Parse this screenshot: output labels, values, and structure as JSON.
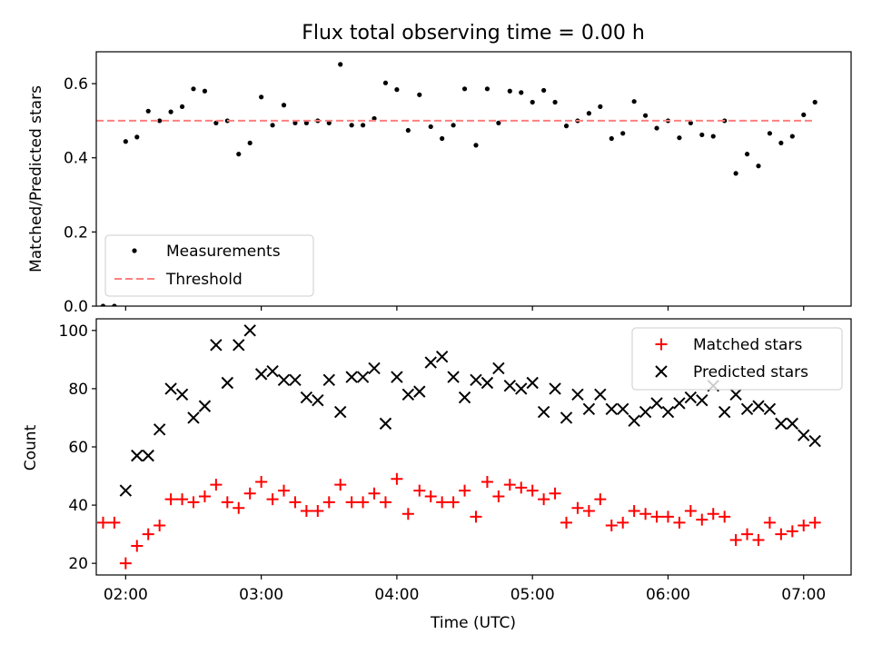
{
  "chart_data": [
    {
      "type": "scatter",
      "title": "Flux total observing time = 0.00 h",
      "xlabel": "",
      "ylabel": "Matched/Predicted stars",
      "xlim": [
        "01:47",
        "07:21"
      ],
      "ylim": [
        0,
        0.686
      ],
      "yticks": [
        0.0,
        0.2,
        0.4,
        0.6
      ],
      "ytick_labels": [
        "0.0",
        "0.2",
        "0.4",
        "0.6"
      ],
      "legend": {
        "position": "lower-left",
        "entries": [
          "Measurements",
          "Threshold"
        ]
      },
      "series": [
        {
          "name": "Measurements",
          "marker": "dot",
          "color": "#000000",
          "points": [
            [
              "01:50",
              0.0
            ],
            [
              "01:55",
              0.0
            ],
            [
              "02:00",
              0.444
            ],
            [
              "02:05",
              0.456
            ],
            [
              "02:10",
              0.526
            ],
            [
              "02:15",
              0.5
            ],
            [
              "02:20",
              0.524
            ],
            [
              "02:25",
              0.538
            ],
            [
              "02:30",
              0.586
            ],
            [
              "02:35",
              0.58
            ],
            [
              "02:40",
              0.494
            ],
            [
              "02:45",
              0.5
            ],
            [
              "02:50",
              0.41
            ],
            [
              "02:55",
              0.44
            ],
            [
              "03:00",
              0.564
            ],
            [
              "03:05",
              0.488
            ],
            [
              "03:10",
              0.542
            ],
            [
              "03:15",
              0.494
            ],
            [
              "03:20",
              0.494
            ],
            [
              "03:25",
              0.5
            ],
            [
              "03:30",
              0.494
            ],
            [
              "03:35",
              0.652
            ],
            [
              "03:40",
              0.488
            ],
            [
              "03:45",
              0.488
            ],
            [
              "03:50",
              0.506
            ],
            [
              "03:55",
              0.602
            ],
            [
              "04:00",
              0.584
            ],
            [
              "04:05",
              0.474
            ],
            [
              "04:10",
              0.57
            ],
            [
              "04:15",
              0.484
            ],
            [
              "04:20",
              0.452
            ],
            [
              "04:25",
              0.488
            ],
            [
              "04:30",
              0.586
            ],
            [
              "04:35",
              0.434
            ],
            [
              "04:40",
              0.586
            ],
            [
              "04:45",
              0.494
            ],
            [
              "04:50",
              0.58
            ],
            [
              "04:55",
              0.576
            ],
            [
              "05:00",
              0.55
            ],
            [
              "05:05",
              0.582
            ],
            [
              "05:10",
              0.55
            ],
            [
              "05:15",
              0.486
            ],
            [
              "05:20",
              0.5
            ],
            [
              "05:25",
              0.52
            ],
            [
              "05:30",
              0.538
            ],
            [
              "05:35",
              0.452
            ],
            [
              "05:40",
              0.466
            ],
            [
              "05:45",
              0.552
            ],
            [
              "05:50",
              0.514
            ],
            [
              "05:55",
              0.48
            ],
            [
              "06:00",
              0.5
            ],
            [
              "06:05",
              0.454
            ],
            [
              "06:10",
              0.494
            ],
            [
              "06:15",
              0.462
            ],
            [
              "06:20",
              0.458
            ],
            [
              "06:25",
              0.5
            ],
            [
              "06:30",
              0.358
            ],
            [
              "06:35",
              0.41
            ],
            [
              "06:40",
              0.378
            ],
            [
              "06:45",
              0.466
            ],
            [
              "06:50",
              0.44
            ],
            [
              "06:55",
              0.458
            ],
            [
              "07:00",
              0.516
            ],
            [
              "07:05",
              0.55
            ]
          ]
        },
        {
          "name": "Threshold",
          "style": "dashed",
          "color": "#ff7f7f",
          "y": 0.5,
          "x_range": [
            "01:47",
            "07:05"
          ]
        }
      ]
    },
    {
      "type": "scatter",
      "title": "",
      "xlabel": "Time (UTC)",
      "ylabel": "Count",
      "xlim": [
        "01:47",
        "07:21"
      ],
      "ylim": [
        16,
        104
      ],
      "yticks": [
        20,
        40,
        60,
        80,
        100
      ],
      "ytick_labels": [
        "20",
        "40",
        "60",
        "80",
        "100"
      ],
      "xticks": [
        "02:00",
        "03:00",
        "04:00",
        "05:00",
        "06:00",
        "07:00"
      ],
      "xtick_labels": [
        "02:00",
        "03:00",
        "04:00",
        "05:00",
        "06:00",
        "07:00"
      ],
      "legend": {
        "position": "top-right",
        "entries": [
          "Matched stars",
          "Predicted stars"
        ]
      },
      "series": [
        {
          "name": "Matched stars",
          "marker": "plus",
          "color": "#ff0000",
          "points": [
            [
              "01:50",
              34
            ],
            [
              "01:55",
              34
            ],
            [
              "02:00",
              20
            ],
            [
              "02:05",
              26
            ],
            [
              "02:10",
              30
            ],
            [
              "02:15",
              33
            ],
            [
              "02:20",
              42
            ],
            [
              "02:25",
              42
            ],
            [
              "02:30",
              41
            ],
            [
              "02:35",
              43
            ],
            [
              "02:40",
              47
            ],
            [
              "02:45",
              41
            ],
            [
              "02:50",
              39
            ],
            [
              "02:55",
              44
            ],
            [
              "03:00",
              48
            ],
            [
              "03:05",
              42
            ],
            [
              "03:10",
              45
            ],
            [
              "03:15",
              41
            ],
            [
              "03:20",
              38
            ],
            [
              "03:25",
              38
            ],
            [
              "03:30",
              41
            ],
            [
              "03:35",
              47
            ],
            [
              "03:40",
              41
            ],
            [
              "03:45",
              41
            ],
            [
              "03:50",
              44
            ],
            [
              "03:55",
              41
            ],
            [
              "04:00",
              49
            ],
            [
              "04:05",
              37
            ],
            [
              "04:10",
              45
            ],
            [
              "04:15",
              43
            ],
            [
              "04:20",
              41
            ],
            [
              "04:25",
              41
            ],
            [
              "04:30",
              45
            ],
            [
              "04:35",
              36
            ],
            [
              "04:40",
              48
            ],
            [
              "04:45",
              43
            ],
            [
              "04:50",
              47
            ],
            [
              "04:55",
              46
            ],
            [
              "05:00",
              45
            ],
            [
              "05:05",
              42
            ],
            [
              "05:10",
              44
            ],
            [
              "05:15",
              34
            ],
            [
              "05:20",
              39
            ],
            [
              "05:25",
              38
            ],
            [
              "05:30",
              42
            ],
            [
              "05:35",
              33
            ],
            [
              "05:40",
              34
            ],
            [
              "05:45",
              38
            ],
            [
              "05:50",
              37
            ],
            [
              "05:55",
              36
            ],
            [
              "06:00",
              36
            ],
            [
              "06:05",
              34
            ],
            [
              "06:10",
              38
            ],
            [
              "06:15",
              35
            ],
            [
              "06:20",
              37
            ],
            [
              "06:25",
              36
            ],
            [
              "06:30",
              28
            ],
            [
              "06:35",
              30
            ],
            [
              "06:40",
              28
            ],
            [
              "06:45",
              34
            ],
            [
              "06:50",
              30
            ],
            [
              "06:55",
              31
            ],
            [
              "07:00",
              33
            ],
            [
              "07:05",
              34
            ]
          ]
        },
        {
          "name": "Predicted stars",
          "marker": "x",
          "color": "#000000",
          "points": [
            [
              "02:00",
              45
            ],
            [
              "02:05",
              57
            ],
            [
              "02:10",
              57
            ],
            [
              "02:15",
              66
            ],
            [
              "02:20",
              80
            ],
            [
              "02:25",
              78
            ],
            [
              "02:30",
              70
            ],
            [
              "02:35",
              74
            ],
            [
              "02:40",
              95
            ],
            [
              "02:45",
              82
            ],
            [
              "02:50",
              95
            ],
            [
              "02:55",
              100
            ],
            [
              "03:00",
              85
            ],
            [
              "03:05",
              86
            ],
            [
              "03:10",
              83
            ],
            [
              "03:15",
              83
            ],
            [
              "03:20",
              77
            ],
            [
              "03:25",
              76
            ],
            [
              "03:30",
              83
            ],
            [
              "03:35",
              72
            ],
            [
              "03:40",
              84
            ],
            [
              "03:45",
              84
            ],
            [
              "03:50",
              87
            ],
            [
              "03:55",
              68
            ],
            [
              "04:00",
              84
            ],
            [
              "04:05",
              78
            ],
            [
              "04:10",
              79
            ],
            [
              "04:15",
              89
            ],
            [
              "04:20",
              91
            ],
            [
              "04:25",
              84
            ],
            [
              "04:30",
              77
            ],
            [
              "04:35",
              83
            ],
            [
              "04:40",
              82
            ],
            [
              "04:45",
              87
            ],
            [
              "04:50",
              81
            ],
            [
              "04:55",
              80
            ],
            [
              "05:00",
              82
            ],
            [
              "05:05",
              72
            ],
            [
              "05:10",
              80
            ],
            [
              "05:15",
              70
            ],
            [
              "05:20",
              78
            ],
            [
              "05:25",
              73
            ],
            [
              "05:30",
              78
            ],
            [
              "05:35",
              73
            ],
            [
              "05:40",
              73
            ],
            [
              "05:45",
              69
            ],
            [
              "05:50",
              72
            ],
            [
              "05:55",
              75
            ],
            [
              "06:00",
              72
            ],
            [
              "06:05",
              75
            ],
            [
              "06:10",
              77
            ],
            [
              "06:15",
              76
            ],
            [
              "06:20",
              81
            ],
            [
              "06:25",
              72
            ],
            [
              "06:30",
              78
            ],
            [
              "06:35",
              73
            ],
            [
              "06:40",
              74
            ],
            [
              "06:45",
              73
            ],
            [
              "06:50",
              68
            ],
            [
              "06:55",
              68
            ],
            [
              "07:00",
              64
            ],
            [
              "07:05",
              62
            ]
          ]
        }
      ]
    }
  ]
}
